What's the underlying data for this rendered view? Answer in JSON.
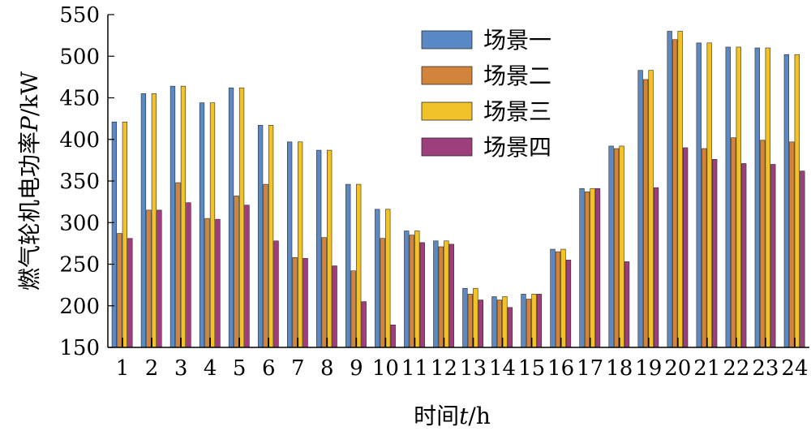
{
  "chart_data": {
    "type": "bar",
    "categories": [
      "1",
      "2",
      "3",
      "4",
      "5",
      "6",
      "7",
      "8",
      "9",
      "10",
      "11",
      "12",
      "13",
      "14",
      "15",
      "16",
      "17",
      "18",
      "19",
      "20",
      "21",
      "22",
      "23",
      "24"
    ],
    "series": [
      {
        "name": "场景一",
        "color": "#5a8ac6",
        "values": [
          421,
          455,
          464,
          444,
          462,
          417,
          397,
          387,
          346,
          316,
          290,
          278,
          221,
          211,
          214,
          268,
          341,
          392,
          483,
          530,
          516,
          511,
          510,
          502
        ]
      },
      {
        "name": "场景二",
        "color": "#d2843a",
        "values": [
          287,
          315,
          348,
          305,
          332,
          346,
          258,
          282,
          242,
          281,
          285,
          271,
          214,
          207,
          208,
          265,
          337,
          389,
          472,
          520,
          389,
          402,
          399,
          397
        ]
      },
      {
        "name": "场景三",
        "color": "#f2c22a",
        "values": [
          421,
          455,
          464,
          444,
          462,
          417,
          397,
          387,
          346,
          316,
          290,
          278,
          221,
          211,
          214,
          268,
          341,
          392,
          483,
          530,
          516,
          511,
          510,
          502
        ]
      },
      {
        "name": "场景四",
        "color": "#9c3f7c",
        "values": [
          281,
          315,
          324,
          304,
          321,
          278,
          257,
          248,
          205,
          177,
          276,
          274,
          207,
          198,
          214,
          255,
          341,
          253,
          342,
          390,
          376,
          371,
          370,
          362
        ]
      }
    ],
    "ylim": [
      150,
      550
    ],
    "yticks": [
      150,
      200,
      250,
      300,
      350,
      400,
      450,
      500,
      550
    ],
    "ylabel": {
      "main": "燃气轮机电功率",
      "italic": "P",
      "unit": "/kW"
    },
    "xlabel": {
      "main": "时间",
      "italic": "t",
      "unit": "/h"
    },
    "legend": {
      "position": "top-center"
    },
    "grid": false
  }
}
